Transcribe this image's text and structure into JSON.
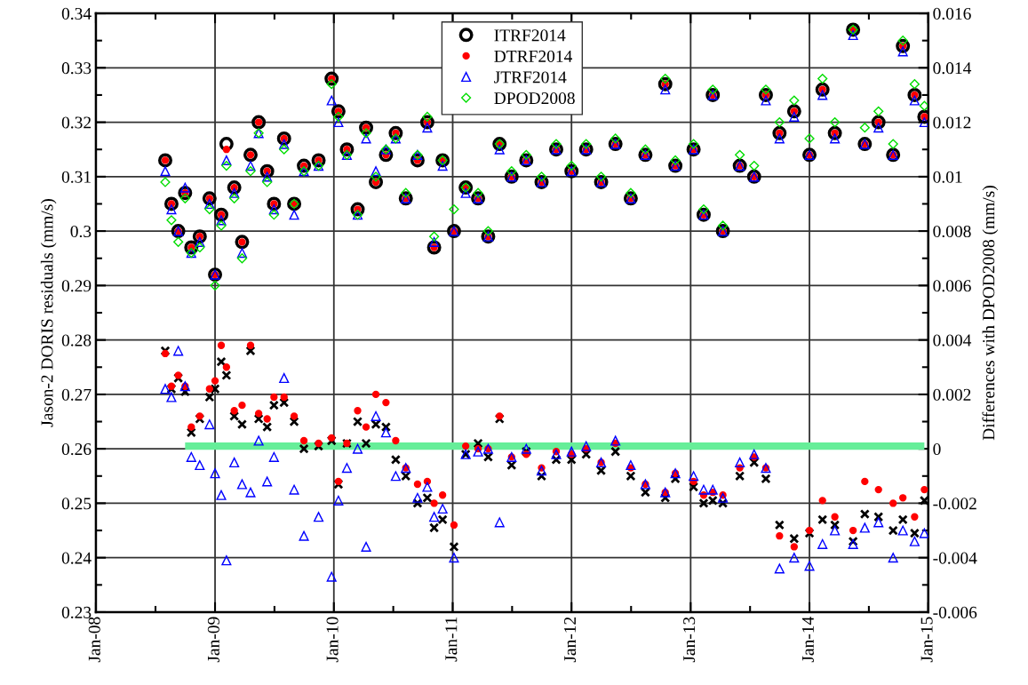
{
  "chart_data": {
    "type": "scatter",
    "ylabel": "Jason-2 DORIS residuals (mm/s)",
    "y2label": "Differences with DPOD2008 (mm/s)",
    "x": [
      "2008-08-01",
      "2008-08-20",
      "2008-09-10",
      "2008-10-01",
      "2008-10-20",
      "2008-11-15",
      "2008-12-15",
      "2009-01-01",
      "2009-01-20",
      "2009-02-05",
      "2009-03-01",
      "2009-03-25",
      "2009-04-20",
      "2009-05-15",
      "2009-06-10",
      "2009-07-01",
      "2009-08-01",
      "2009-09-01",
      "2009-10-01",
      "2009-11-15",
      "2009-12-25",
      "2010-01-15",
      "2010-02-10",
      "2010-03-15",
      "2010-04-10",
      "2010-05-10",
      "2010-06-10",
      "2010-07-10",
      "2010-08-10",
      "2010-09-15",
      "2010-10-15",
      "2010-11-05",
      "2010-12-01",
      "2011-01-05",
      "2011-02-10",
      "2011-03-20",
      "2011-04-20",
      "2011-05-25",
      "2011-07-01",
      "2011-08-15",
      "2011-10-01",
      "2011-11-15",
      "2012-01-01",
      "2012-02-15",
      "2012-04-01",
      "2012-05-15",
      "2012-07-01",
      "2012-08-15",
      "2012-10-15",
      "2012-11-15",
      "2013-01-10",
      "2013-02-10",
      "2013-03-10",
      "2013-04-10",
      "2013-06-01",
      "2013-07-15",
      "2013-08-20",
      "2013-10-01",
      "2013-11-15",
      "2014-01-01",
      "2014-02-10",
      "2014-03-20",
      "2014-05-15",
      "2014-06-20",
      "2014-08-01",
      "2014-09-15",
      "2014-10-15",
      "2014-11-20",
      "2014-12-20"
    ],
    "series": [
      {
        "name": "ITRF2014",
        "color": "#000000",
        "marker": "circle",
        "values": [
          0.313,
          0.305,
          0.3,
          0.307,
          0.297,
          0.299,
          0.306,
          0.292,
          0.303,
          0.316,
          0.308,
          0.298,
          0.314,
          0.32,
          0.311,
          0.305,
          0.317,
          0.305,
          0.312,
          0.313,
          0.328,
          0.322,
          0.315,
          0.304,
          0.319,
          0.309,
          0.314,
          0.318,
          0.306,
          0.313,
          0.32,
          0.297,
          0.313,
          0.3,
          0.308,
          0.306,
          0.299,
          0.316,
          0.31,
          0.313,
          0.309,
          0.315,
          0.311,
          0.315,
          0.309,
          0.316,
          0.306,
          0.314,
          0.327,
          0.312,
          0.315,
          0.303,
          0.325,
          0.3,
          0.312,
          0.31,
          0.325,
          0.318,
          0.322,
          0.314,
          0.326,
          0.318,
          0.337,
          0.316,
          0.32,
          0.314,
          0.334,
          0.325,
          0.321
        ]
      },
      {
        "name": "DTRF2014",
        "color": "#ff0000",
        "marker": "circle",
        "values": [
          0.313,
          0.305,
          0.3,
          0.307,
          0.297,
          0.299,
          0.306,
          0.292,
          0.303,
          0.315,
          0.308,
          0.298,
          0.314,
          0.32,
          0.311,
          0.305,
          0.317,
          0.305,
          0.312,
          0.313,
          0.328,
          0.322,
          0.315,
          0.304,
          0.319,
          0.309,
          0.314,
          0.318,
          0.306,
          0.313,
          0.32,
          0.297,
          0.313,
          0.3,
          0.308,
          0.306,
          0.299,
          0.316,
          0.31,
          0.313,
          0.309,
          0.315,
          0.311,
          0.315,
          0.309,
          0.316,
          0.306,
          0.314,
          0.327,
          0.312,
          0.315,
          0.303,
          0.325,
          0.3,
          0.312,
          0.31,
          0.325,
          0.318,
          0.322,
          0.314,
          0.326,
          0.318,
          0.337,
          0.316,
          0.32,
          0.314,
          0.334,
          0.325,
          0.321
        ]
      },
      {
        "name": "JTRF2014",
        "color": "#0000ff",
        "marker": "triangle",
        "values": [
          0.311,
          0.304,
          0.3,
          0.308,
          0.296,
          0.298,
          0.305,
          0.292,
          0.302,
          0.313,
          0.307,
          0.296,
          0.312,
          0.318,
          0.31,
          0.304,
          0.316,
          0.303,
          0.311,
          0.312,
          0.324,
          0.32,
          0.314,
          0.303,
          0.317,
          0.311,
          0.315,
          0.317,
          0.306,
          0.314,
          0.319,
          0.298,
          0.312,
          0.3,
          0.307,
          0.306,
          0.299,
          0.315,
          0.31,
          0.313,
          0.309,
          0.315,
          0.311,
          0.315,
          0.309,
          0.316,
          0.306,
          0.314,
          0.326,
          0.312,
          0.315,
          0.303,
          0.325,
          0.3,
          0.312,
          0.31,
          0.324,
          0.317,
          0.321,
          0.314,
          0.325,
          0.317,
          0.336,
          0.316,
          0.319,
          0.314,
          0.333,
          0.324,
          0.32
        ]
      },
      {
        "name": "DPOD2008",
        "color": "#00dd00",
        "marker": "diamond",
        "values": [
          0.309,
          0.302,
          0.298,
          0.306,
          0.296,
          0.297,
          0.304,
          0.29,
          0.301,
          0.312,
          0.306,
          0.295,
          0.311,
          0.318,
          0.309,
          0.303,
          0.315,
          0.305,
          0.311,
          0.312,
          0.327,
          0.321,
          0.314,
          0.303,
          0.318,
          0.31,
          0.315,
          0.317,
          0.307,
          0.314,
          0.321,
          0.299,
          0.313,
          0.304,
          0.308,
          0.307,
          0.3,
          0.316,
          0.311,
          0.314,
          0.31,
          0.316,
          0.312,
          0.316,
          0.31,
          0.317,
          0.307,
          0.315,
          0.328,
          0.313,
          0.316,
          0.304,
          0.326,
          0.301,
          0.314,
          0.312,
          0.326,
          0.32,
          0.324,
          0.317,
          0.328,
          0.32,
          0.337,
          0.319,
          0.322,
          0.316,
          0.335,
          0.327,
          0.323
        ]
      },
      {
        "color": "#000000",
        "marker": "cross",
        "axis": "y2",
        "values": [
          0.0036,
          0.0022,
          0.0026,
          0.0021,
          0.0006,
          0.0011,
          0.0019,
          0.0022,
          0.0032,
          0.0027,
          0.0012,
          0.0009,
          0.0036,
          0.0011,
          0.0008,
          0.0016,
          0.0017,
          0.001,
          0.0,
          0.0001,
          0.0003,
          -0.0013,
          0.0002,
          0.001,
          0.0002,
          0.0009,
          0.0008,
          -0.0004,
          -0.001,
          -0.002,
          -0.0018,
          -0.0029,
          -0.0026,
          -0.0036,
          -0.0002,
          0.0002,
          -0.0003,
          0.0011,
          -0.0006,
          -0.0001,
          -0.001,
          -0.0004,
          -0.0004,
          -0.0002,
          -0.0008,
          -0.0001,
          -0.001,
          -0.0016,
          -0.0018,
          -0.0011,
          -0.0014,
          -0.002,
          -0.0019,
          -0.002,
          -0.001,
          -0.0005,
          -0.0011,
          -0.0028,
          -0.0033,
          -0.0031,
          -0.0026,
          -0.0028,
          -0.0034,
          -0.0024,
          -0.0025,
          -0.003,
          -0.0026,
          -0.0031,
          -0.0019
        ]
      },
      {
        "color": "#ff0000",
        "marker": "circle",
        "axis": "y2",
        "values": [
          0.0035,
          0.0023,
          0.0027,
          0.0023,
          0.0008,
          0.0012,
          0.0022,
          0.0025,
          0.0038,
          0.003,
          0.0014,
          0.0016,
          0.0038,
          0.0013,
          0.0011,
          0.0019,
          0.0019,
          0.0012,
          0.0003,
          0.0002,
          0.0004,
          -0.0012,
          0.0002,
          0.0014,
          0.0008,
          0.002,
          0.0017,
          0.0003,
          -0.0007,
          -0.0013,
          -0.0012,
          -0.002,
          -0.0017,
          -0.0028,
          0.0001,
          0.0,
          0.0,
          0.0012,
          -0.0003,
          -0.0002,
          -0.0007,
          -0.0001,
          -0.0002,
          0.0,
          -0.0005,
          0.0002,
          -0.0007,
          -0.0013,
          -0.0016,
          -0.0009,
          -0.0012,
          -0.0017,
          -0.0016,
          -0.0017,
          -0.0007,
          -0.0003,
          -0.0007,
          -0.0032,
          -0.0036,
          -0.003,
          -0.0019,
          -0.0025,
          -0.003,
          -0.0012,
          -0.0015,
          -0.002,
          -0.0018,
          -0.0025,
          -0.0015
        ]
      },
      {
        "color": "#0000ff",
        "marker": "triangle",
        "axis": "y2",
        "values": [
          0.0022,
          0.0019,
          0.0036,
          0.0023,
          -0.0003,
          -0.0006,
          0.0009,
          -0.0009,
          -0.0017,
          -0.0041,
          -0.0005,
          -0.0013,
          -0.0016,
          0.0003,
          -0.0012,
          -0.0003,
          0.0026,
          -0.0015,
          -0.0032,
          -0.0025,
          -0.0047,
          -0.0019,
          -0.0007,
          0.0,
          -0.0036,
          0.0012,
          0.0006,
          -0.001,
          -0.0007,
          -0.0018,
          -0.0014,
          -0.0025,
          -0.0022,
          -0.004,
          -0.0002,
          -0.0001,
          0.0,
          -0.0027,
          -0.0003,
          0.0,
          -0.0008,
          -0.0002,
          -0.0001,
          0.0001,
          -0.0005,
          0.0003,
          -0.0006,
          -0.0013,
          -0.0016,
          -0.0009,
          -0.001,
          -0.0015,
          -0.0015,
          -0.0018,
          -0.0005,
          -0.0002,
          -0.0007,
          -0.0044,
          -0.004,
          -0.0043,
          -0.0035,
          -0.003,
          -0.0035,
          -0.0029,
          -0.0027,
          -0.004,
          -0.003,
          -0.0034,
          -0.0031
        ]
      },
      {
        "type": "line",
        "color": "#66ee99",
        "marker": "none",
        "axis": "y2",
        "x": [
          "2008-10-01",
          "2014-12-20"
        ],
        "values": [
          0.0001,
          0.0001
        ]
      }
    ],
    "xlim": [
      "2008-01-01",
      "2015-01-01"
    ],
    "xticks": [
      {
        "value": "2008-01-01",
        "label": "Jan-08"
      },
      {
        "value": "2009-01-01",
        "label": "Jan-09"
      },
      {
        "value": "2010-01-01",
        "label": "Jan-10"
      },
      {
        "value": "2011-01-01",
        "label": "Jan-11"
      },
      {
        "value": "2012-01-01",
        "label": "Jan-12"
      },
      {
        "value": "2013-01-01",
        "label": "Jan-13"
      },
      {
        "value": "2014-01-01",
        "label": "Jan-14"
      },
      {
        "value": "2015-01-01",
        "label": "Jan-15"
      }
    ],
    "ylim": [
      0.23,
      0.34
    ],
    "yticks": [
      0.23,
      0.24,
      0.25,
      0.26,
      0.27,
      0.28,
      0.29,
      0.3,
      0.31,
      0.32,
      0.33,
      0.34
    ],
    "y2lim": [
      -0.006,
      0.016
    ],
    "y2ticks": [
      -0.006,
      -0.004,
      -0.002,
      0,
      0.002,
      0.004,
      0.006,
      0.008,
      0.01,
      0.012,
      0.014,
      0.016
    ],
    "grid": true,
    "legend": "top"
  }
}
